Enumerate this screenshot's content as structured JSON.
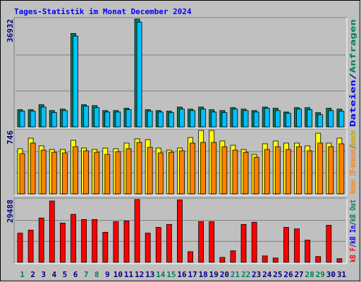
{
  "chart_data": [
    {
      "type": "bar",
      "title": "Tages-Statistik im Monat December 2024",
      "ylim": [
        0,
        36932
      ],
      "yticks": [
        36932
      ],
      "ylabel": [
        {
          "text": "Dateien",
          "color": "#0000ff"
        },
        {
          "text": "/",
          "color": "#000080"
        },
        {
          "text": "Anfragen",
          "color": "#00805c"
        }
      ],
      "series": [
        {
          "color": "#00805c",
          "values": [
            5900,
            5900,
            7600,
            5600,
            6100,
            32000,
            7600,
            7300,
            5600,
            5600,
            6400,
            36932,
            5900,
            5600,
            5400,
            6800,
            6100,
            6800,
            5900,
            5600,
            6600,
            6100,
            5600,
            6800,
            6400,
            5100,
            6600,
            6600,
            4900,
            6400,
            6100
          ]
        },
        {
          "color": "#00c0ff",
          "values": [
            5400,
            5400,
            6800,
            4900,
            5600,
            31100,
            7100,
            6600,
            5100,
            5100,
            5900,
            35900,
            5400,
            5100,
            4900,
            6100,
            5600,
            6100,
            5100,
            4900,
            6100,
            5600,
            5100,
            6400,
            5600,
            4700,
            6100,
            5900,
            4200,
            5600,
            5400
          ]
        }
      ]
    },
    {
      "type": "bar",
      "ylim": [
        0,
        746
      ],
      "yticks": [
        746
      ],
      "ylabel": [
        {
          "text": "Rechner (IP-Adressen)",
          "color": "#ff8000"
        },
        {
          "text": "/",
          "color": "#000080"
        },
        {
          "text": "Besuche",
          "color": "#c0a000"
        }
      ],
      "series": [
        {
          "color": "#ffff00",
          "values": [
            531,
            655,
            564,
            522,
            522,
            630,
            539,
            522,
            539,
            531,
            597,
            647,
            638,
            539,
            514,
            539,
            663,
            746,
            746,
            622,
            572,
            522,
            464,
            589,
            622,
            597,
            597,
            564,
            713,
            597,
            655
          ]
        },
        {
          "color": "#ff8000",
          "values": [
            473,
            597,
            514,
            489,
            481,
            555,
            506,
            489,
            464,
            497,
            531,
            605,
            547,
            481,
            489,
            506,
            597,
            605,
            605,
            555,
            514,
            489,
            431,
            522,
            555,
            522,
            555,
            506,
            597,
            555,
            589
          ]
        }
      ]
    },
    {
      "type": "bar",
      "ylim": [
        0,
        29488
      ],
      "yticks": [
        29488
      ],
      "ylabel": [
        {
          "text": "kB F",
          "color": "#ff0000"
        },
        {
          "text": "/",
          "color": "#000080"
        },
        {
          "text": "kB In",
          "color": "#0000ff"
        },
        {
          "text": "/",
          "color": "#000080"
        },
        {
          "text": "kB Out",
          "color": "#00805c"
        }
      ],
      "categories": [
        "1",
        "2",
        "3",
        "4",
        "5",
        "6",
        "7",
        "8",
        "9",
        "10",
        "11",
        "12",
        "13",
        "14",
        "15",
        "16",
        "17",
        "18",
        "19",
        "20",
        "21",
        "22",
        "23",
        "24",
        "25",
        "26",
        "27",
        "28",
        "29",
        "30",
        "31"
      ],
      "category_colors": [
        "#00805c",
        "#000080",
        "#000080",
        "#000080",
        "#000080",
        "#000080",
        "#00805c",
        "#00805c",
        "#000080",
        "#000080",
        "#000080",
        "#000080",
        "#000080",
        "#00805c",
        "#00805c",
        "#000080",
        "#000080",
        "#000080",
        "#000080",
        "#000080",
        "#00805c",
        "#00805c",
        "#000080",
        "#000080",
        "#000080",
        "#000080",
        "#000080",
        "#00805c",
        "#00805c",
        "#000080",
        "#000080"
      ],
      "series": [
        {
          "color": "#ff0000",
          "values": [
            13700,
            15100,
            20800,
            28800,
            18400,
            22500,
            20100,
            20100,
            14100,
            19100,
            19400,
            29488,
            13700,
            16400,
            17800,
            29300,
            5000,
            19100,
            19100,
            2300,
            5400,
            17800,
            18800,
            3000,
            2000,
            16400,
            15700,
            10400,
            2700,
            17400,
            1700
          ]
        }
      ]
    }
  ]
}
